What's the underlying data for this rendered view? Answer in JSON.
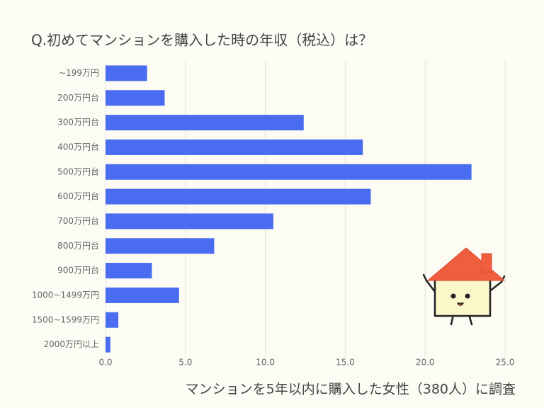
{
  "chart_data": {
    "type": "bar",
    "orientation": "horizontal",
    "title": "Q.初めてマンションを購入した時の年収（税込）は？",
    "note": "マンションを5年以内に購入した女性（380人）に調査",
    "categories": [
      "~199万円",
      "200万円台",
      "300万円台",
      "400万円台",
      "500万円台",
      "600万円台",
      "700万円台",
      "800万円台",
      "900万円台",
      "1000~1499万円",
      "1500~1599万円",
      "2000万円以上"
    ],
    "values": [
      2.6,
      3.7,
      12.4,
      16.1,
      22.9,
      16.6,
      10.5,
      6.8,
      2.9,
      4.6,
      0.8,
      0.3
    ],
    "color": "#4a6cf0",
    "xlim": [
      0,
      25
    ],
    "xticks": [
      {
        "value": 0,
        "label": "0.0"
      },
      {
        "value": 5,
        "label": "5.0"
      },
      {
        "value": 10,
        "label": "10.0"
      },
      {
        "value": 15,
        "label": "15.0"
      },
      {
        "value": 20,
        "label": "20.0"
      },
      {
        "value": 25,
        "label": "25.0"
      }
    ],
    "grid": true
  }
}
